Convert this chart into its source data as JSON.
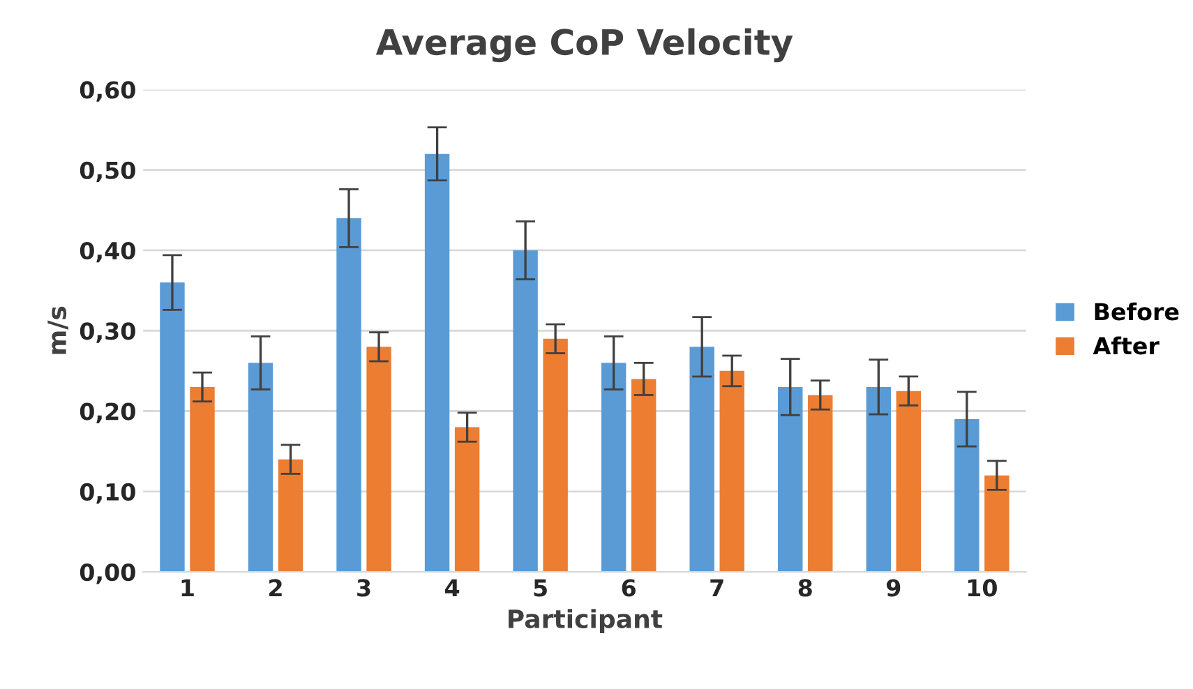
{
  "chart_data": {
    "type": "bar",
    "title": "Average CoP Velocity",
    "xlabel": "Participant",
    "ylabel": "m/s",
    "categories": [
      "1",
      "2",
      "3",
      "4",
      "5",
      "6",
      "7",
      "8",
      "9",
      "10"
    ],
    "series": [
      {
        "name": "Before",
        "color": "#5b9bd5",
        "values": [
          0.36,
          0.26,
          0.44,
          0.52,
          0.4,
          0.26,
          0.28,
          0.23,
          0.23,
          0.19
        ],
        "errors": [
          0.034,
          0.033,
          0.036,
          0.033,
          0.036,
          0.033,
          0.037,
          0.035,
          0.034,
          0.034
        ]
      },
      {
        "name": "After",
        "color": "#ed7d31",
        "values": [
          0.23,
          0.14,
          0.28,
          0.18,
          0.29,
          0.24,
          0.25,
          0.22,
          0.225,
          0.12
        ],
        "errors": [
          0.018,
          0.018,
          0.018,
          0.018,
          0.018,
          0.02,
          0.019,
          0.018,
          0.018,
          0.018
        ]
      }
    ],
    "ylim": [
      0,
      0.6
    ],
    "yticks": [
      {
        "value": 0,
        "label": "0,00"
      },
      {
        "value": 0.1,
        "label": "0,10"
      },
      {
        "value": 0.2,
        "label": "0,20"
      },
      {
        "value": 0.3,
        "label": "0,30"
      },
      {
        "value": 0.4,
        "label": "0,40"
      },
      {
        "value": 0.5,
        "label": "0,50"
      },
      {
        "value": 0.6,
        "label": "0,60"
      }
    ],
    "grid": "y",
    "legend": "right"
  }
}
